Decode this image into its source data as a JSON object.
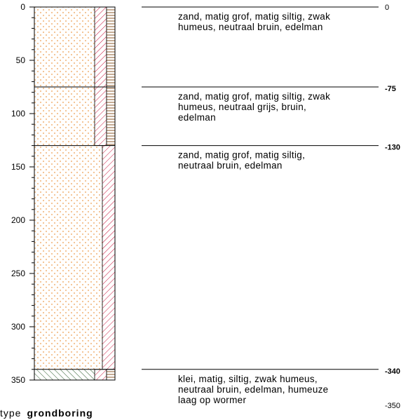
{
  "axis": {
    "ticks": [
      "0",
      "50",
      "100",
      "150",
      "200",
      "250",
      "300",
      "350"
    ],
    "minor_step": 10,
    "range": [
      0,
      350
    ]
  },
  "layers": [
    {
      "top": 0,
      "bottom": 75,
      "top_label": "0",
      "description": [
        "zand, matig grof, matig siltig, zwak",
        "humeus, neutraal bruin, edelman"
      ],
      "lithology": "sand",
      "admixtures": [
        "silt",
        "humus"
      ]
    },
    {
      "top": 75,
      "bottom": 130,
      "top_label": "-75",
      "description": [
        "zand, matig grof, matig siltig, zwak",
        "humeus, neutraal grijs, bruin,",
        "edelman"
      ],
      "lithology": "sand",
      "admixtures": [
        "silt",
        "humus"
      ]
    },
    {
      "top": 130,
      "bottom": 340,
      "top_label": "-130",
      "description": [
        "zand, matig grof, matig siltig,",
        "neutraal bruin, edelman"
      ],
      "lithology": "sand",
      "admixtures": [
        "silt"
      ]
    },
    {
      "top": 340,
      "bottom": 350,
      "top_label": "-340",
      "description": [
        "klei, matig, siltig, zwak humeus,",
        "neutraal bruin, edelman, humeuze",
        "laag op wormer"
      ],
      "lithology": "clay",
      "admixtures": [
        "silt",
        "humus"
      ]
    }
  ],
  "end_label": "-350",
  "footer": {
    "type_label": "type",
    "type_value": "grondboring"
  },
  "colors": {
    "sand_dot": "#f3c08d",
    "silt_hatch": "#c8143c",
    "humus_hatch": "#8b5a2b",
    "clay_hatch": "#2a5a2a",
    "line": "#000000"
  }
}
